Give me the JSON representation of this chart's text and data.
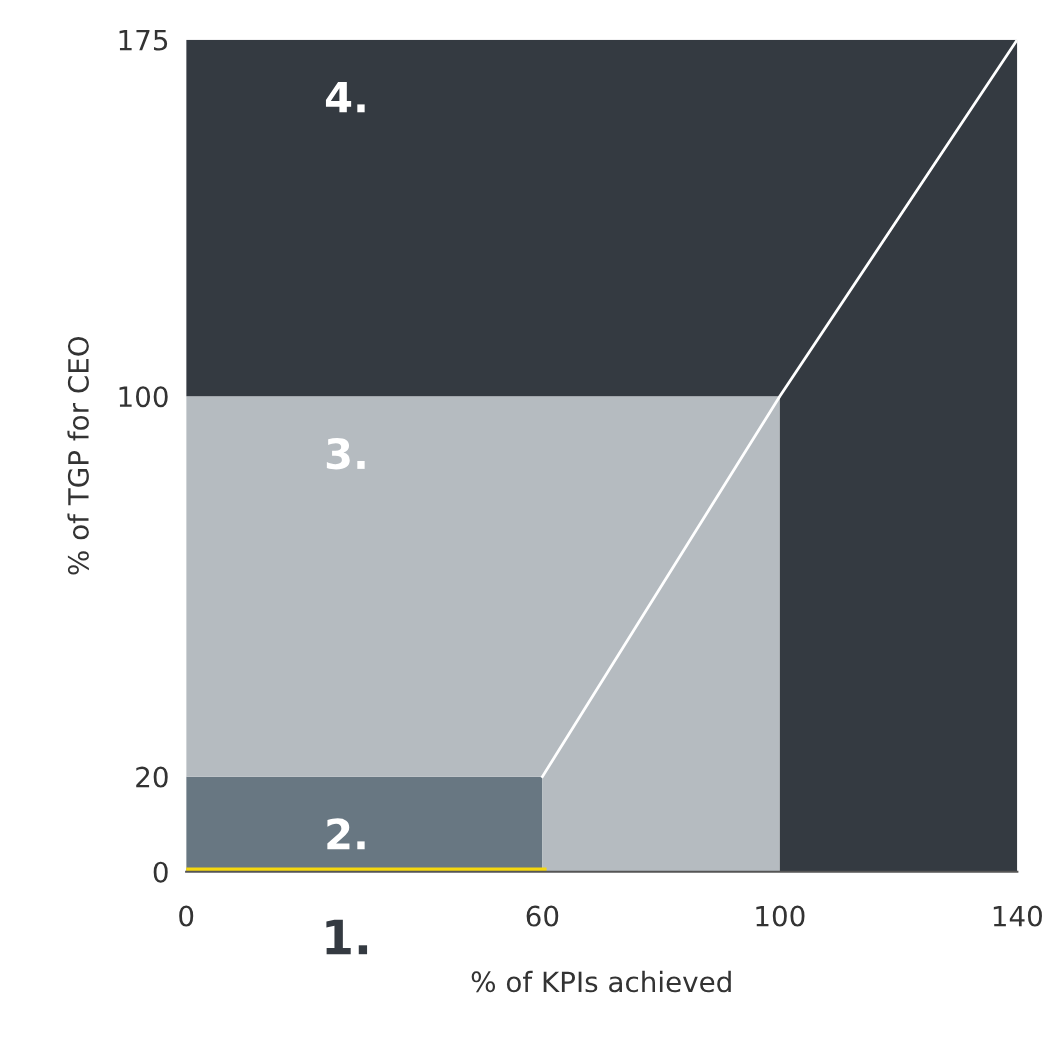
{
  "chart_data": {
    "type": "line",
    "xlabel": "% of KPIs achieved",
    "ylabel": "% of TGP for CEO",
    "stacked": true,
    "xlim": [
      0,
      140
    ],
    "ylim": [
      0,
      175
    ],
    "xticks": [
      0,
      60,
      100,
      140
    ],
    "yticks": [
      0,
      20,
      100,
      175
    ],
    "grid": false,
    "legend": false,
    "series": [
      {
        "type": "area",
        "color": "#687782",
        "x": [
          0,
          60,
          60,
          100,
          100,
          140
        ],
        "values": [
          20,
          20,
          0,
          0,
          0,
          0
        ]
      },
      {
        "type": "area",
        "color": "#b5bbc0",
        "x": [
          0,
          60,
          60,
          100,
          100,
          140
        ],
        "values": [
          80,
          80,
          100,
          100,
          0,
          0
        ]
      },
      {
        "type": "area",
        "color": "#343a41",
        "x": [
          0,
          60,
          60,
          100,
          100,
          140
        ],
        "values": [
          75,
          75,
          75,
          75,
          175,
          175
        ]
      },
      {
        "type": "line",
        "color": "#f5d80f",
        "x": [
          0,
          60
        ],
        "values": [
          0,
          0
        ]
      },
      {
        "type": "line",
        "color": "#ffffff",
        "x": [
          60,
          100,
          140
        ],
        "values": [
          20,
          100,
          175
        ]
      }
    ],
    "annotations": [
      "1.",
      "2.",
      "3.",
      "4."
    ]
  }
}
